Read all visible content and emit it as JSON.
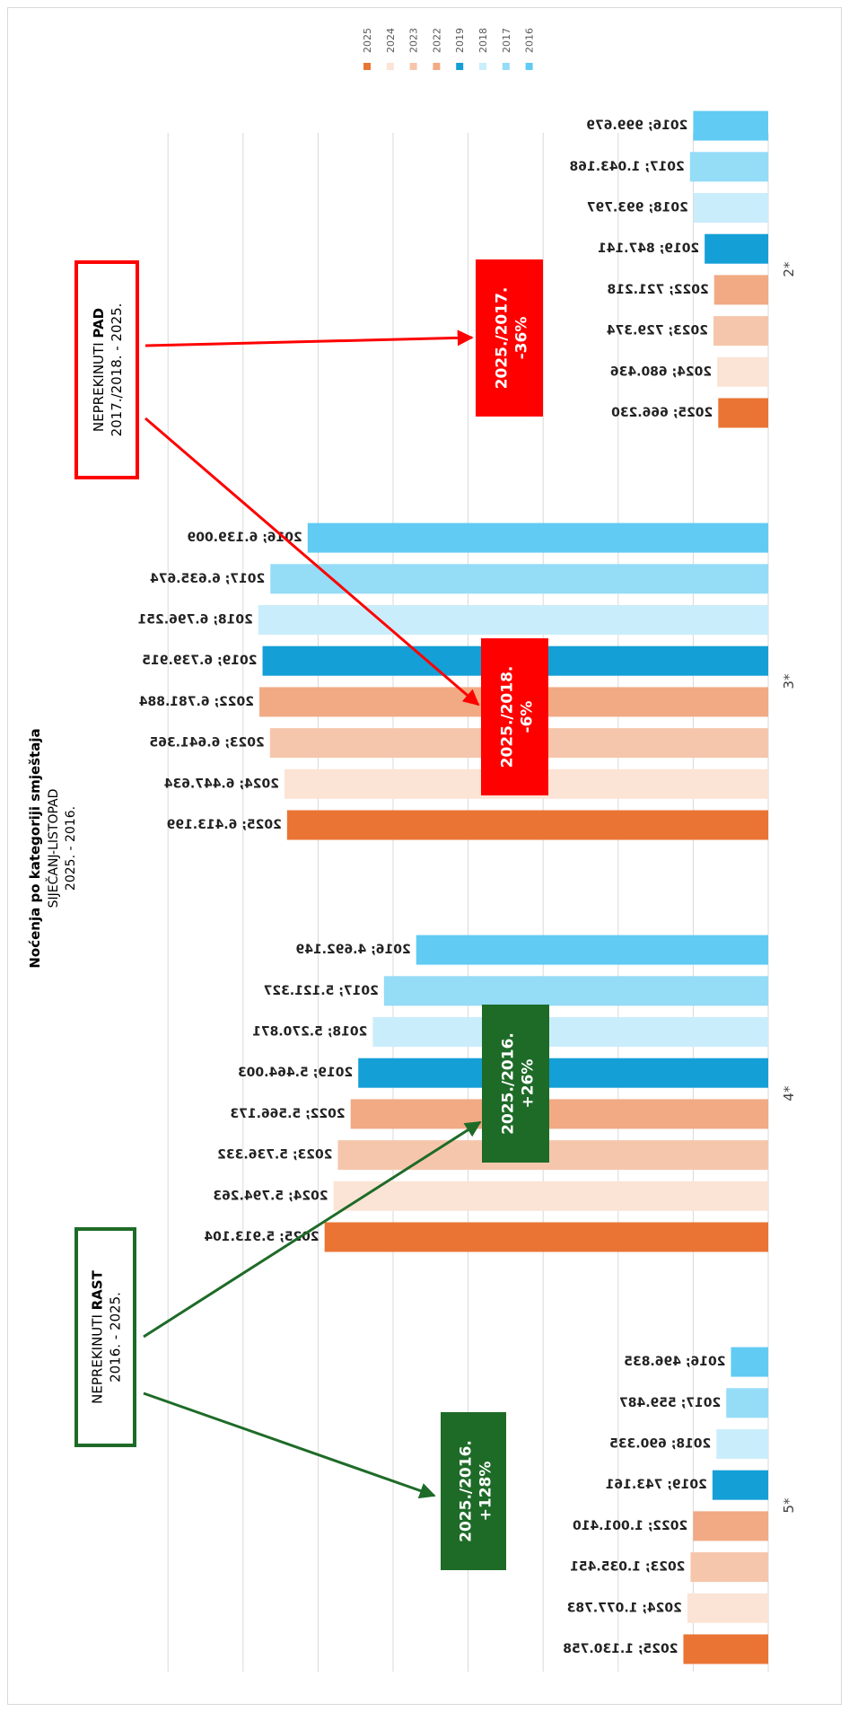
{
  "chart_data": {
    "type": "bar",
    "title": "Noćenja po kategoriji smještaja",
    "subtitle_line1": "SIJEČANJ-LISTOPAD",
    "subtitle_line2": "2025. - 2016.",
    "xlabel": "",
    "ylabel": "",
    "xlim": [
      0,
      8000000
    ],
    "grid": true,
    "legend_position": "top",
    "legend": [
      "2025",
      "2024",
      "2023",
      "2022",
      "2019",
      "2018",
      "2017",
      "2016"
    ],
    "colors": {
      "2025": "#ea7434",
      "2024": "#fbe4d6",
      "2023": "#f6c6ac",
      "2022": "#f1aa84",
      "2019": "#149fd6",
      "2018": "#caedfb",
      "2017": "#95dcf7",
      "2016": "#61cbf4"
    },
    "categories": [
      {
        "name": "5*",
        "bars": [
          {
            "year": "2025",
            "value": 1130758,
            "label": "2025; 1.130.758"
          },
          {
            "year": "2024",
            "value": 1077783,
            "label": "2024; 1.077.783"
          },
          {
            "year": "2023",
            "value": 1035451,
            "label": "2023; 1.035.451"
          },
          {
            "year": "2022",
            "value": 1001410,
            "label": "2022; 1.001.410"
          },
          {
            "year": "2019",
            "value": 743161,
            "label": "2019; 743.161"
          },
          {
            "year": "2018",
            "value": 690335,
            "label": "2018; 690.335"
          },
          {
            "year": "2017",
            "value": 559487,
            "label": "2017; 559.487"
          },
          {
            "year": "2016",
            "value": 496835,
            "label": "2016; 496.835"
          }
        ]
      },
      {
        "name": "4*",
        "bars": [
          {
            "year": "2025",
            "value": 5913104,
            "label": "2025; 5.913.104"
          },
          {
            "year": "2024",
            "value": 5794263,
            "label": "2024; 5.794.263"
          },
          {
            "year": "2023",
            "value": 5736332,
            "label": "2023; 5.736.332"
          },
          {
            "year": "2022",
            "value": 5566173,
            "label": "2022; 5.566.173"
          },
          {
            "year": "2019",
            "value": 5464003,
            "label": "2019; 5.464.003"
          },
          {
            "year": "2018",
            "value": 5270871,
            "label": "2018; 5.270.871"
          },
          {
            "year": "2017",
            "value": 5121327,
            "label": "2017; 5.121.327"
          },
          {
            "year": "2016",
            "value": 4692149,
            "label": "2016; 4.692.149"
          }
        ]
      },
      {
        "name": "3*",
        "bars": [
          {
            "year": "2025",
            "value": 6413199,
            "label": "2025; 6.413.199"
          },
          {
            "year": "2024",
            "value": 6447634,
            "label": "2024; 6.447.634"
          },
          {
            "year": "2023",
            "value": 6641365,
            "label": "2023; 6.641.365"
          },
          {
            "year": "2022",
            "value": 6781884,
            "label": "2022; 6.781.884"
          },
          {
            "year": "2019",
            "value": 6739915,
            "label": "2019; 6.739.915"
          },
          {
            "year": "2018",
            "value": 6796251,
            "label": "2018; 6.796.251"
          },
          {
            "year": "2017",
            "value": 6635674,
            "label": "2017; 6.635.674"
          },
          {
            "year": "2016",
            "value": 6139009,
            "label": "2016; 6.139.009"
          }
        ]
      },
      {
        "name": "2*",
        "bars": [
          {
            "year": "2025",
            "value": 666230,
            "label": "2025; 666.230"
          },
          {
            "year": "2024",
            "value": 680436,
            "label": "2024; 680.436"
          },
          {
            "year": "2023",
            "value": 729374,
            "label": "2023; 729.374"
          },
          {
            "year": "2022",
            "value": 721218,
            "label": "2022; 721.218"
          },
          {
            "year": "2019",
            "value": 847141,
            "label": "2019; 847.141"
          },
          {
            "year": "2018",
            "value": 993797,
            "label": "2018; 993.797"
          },
          {
            "year": "2017",
            "value": 1043168,
            "label": "2017; 1.043.168"
          },
          {
            "year": "2016",
            "value": 999679,
            "label": "2016; 999.679"
          }
        ]
      }
    ],
    "annotations": [
      {
        "id": "pct-5",
        "category": "5*",
        "line1": "2025./2016.",
        "line2": "+128%",
        "color": "#1e6b28"
      },
      {
        "id": "pct-4",
        "category": "4*",
        "line1": "2025./2016.",
        "line2": "+26%",
        "color": "#1e6b28"
      },
      {
        "id": "pct-3",
        "category": "3*",
        "line1": "2025./2018.",
        "line2": "-6%",
        "color": "#ff0000"
      },
      {
        "id": "pct-2",
        "category": "2*",
        "line1": "2025./2017.",
        "line2": "-36%",
        "color": "#ff0000"
      }
    ],
    "callouts": [
      {
        "id": "rast",
        "line1_prefix": "NEPREKINUTI ",
        "line1_bold": "RAST",
        "line2": "2016. - 2025.",
        "color": "#1e6b28"
      },
      {
        "id": "pad",
        "line1_prefix": "NEPREKINUTI ",
        "line1_bold": "PAD",
        "line2": "2017./2018. - 2025.",
        "color": "#ff0000"
      }
    ]
  }
}
